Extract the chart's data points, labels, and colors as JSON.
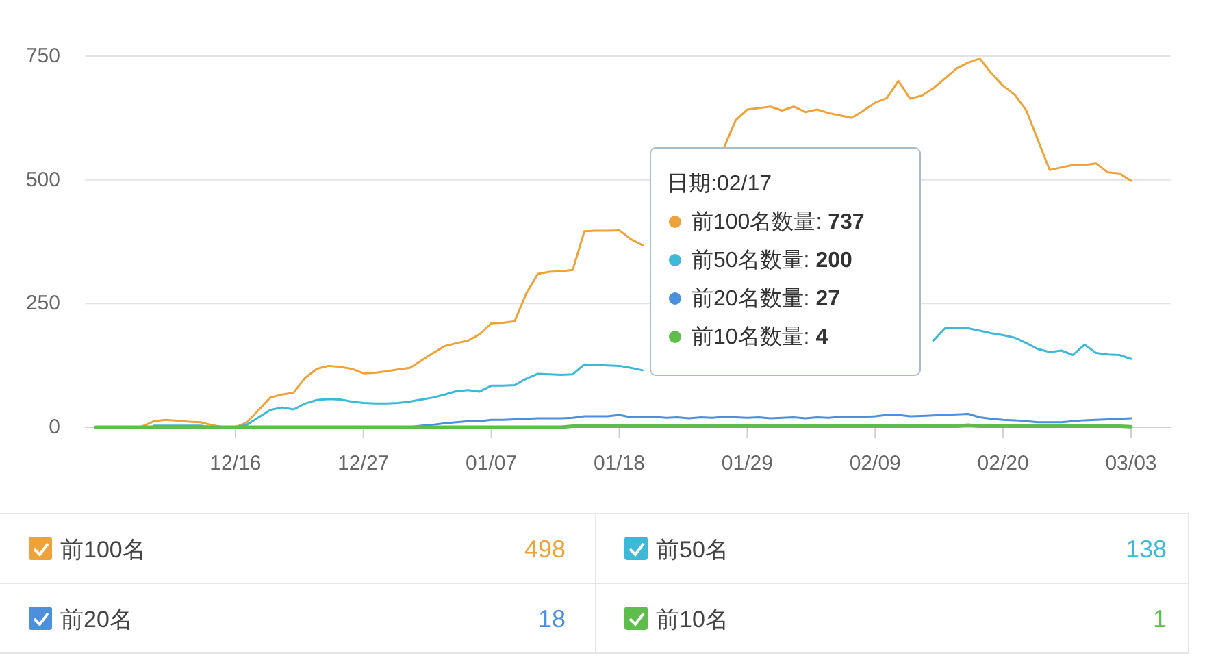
{
  "chart_data": {
    "type": "line",
    "categories": [
      null,
      null,
      null,
      null,
      null,
      null,
      null,
      null,
      null,
      null,
      null,
      null,
      "12/16",
      null,
      null,
      null,
      null,
      null,
      null,
      null,
      null,
      null,
      null,
      "12/27",
      null,
      null,
      null,
      null,
      null,
      null,
      null,
      null,
      null,
      null,
      "01/07",
      null,
      null,
      null,
      null,
      null,
      null,
      null,
      null,
      null,
      null,
      "01/18",
      null,
      null,
      null,
      null,
      null,
      null,
      null,
      null,
      null,
      null,
      "01/29",
      null,
      null,
      null,
      null,
      null,
      null,
      null,
      null,
      null,
      null,
      "02/09",
      null,
      null,
      null,
      null,
      null,
      null,
      null,
      null,
      null,
      null,
      "02/20",
      null,
      null,
      null,
      null,
      null,
      null,
      null,
      null,
      null,
      null,
      "03/03"
    ],
    "series": [
      {
        "name": "前100名",
        "color": "#eda23a",
        "values": [
          null,
          null,
          null,
          null,
          2,
          12,
          15,
          13,
          11,
          10,
          4,
          0,
          0,
          10,
          35,
          60,
          66,
          70,
          100,
          118,
          124,
          122,
          118,
          109,
          110,
          113,
          117,
          120,
          135,
          150,
          164,
          170,
          175,
          188,
          210,
          211,
          214,
          270,
          310,
          314,
          315,
          318,
          396,
          397,
          397,
          398,
          380,
          368,
          null,
          null,
          null,
          null,
          null,
          null,
          565,
          620,
          642,
          645,
          648,
          640,
          648,
          637,
          642,
          635,
          630,
          625,
          640,
          656,
          665,
          700,
          664,
          670,
          685,
          705,
          725,
          737,
          745,
          715,
          690,
          672,
          640,
          580,
          520,
          525,
          530,
          530,
          533,
          515,
          513,
          498
        ]
      },
      {
        "name": "前50名",
        "color": "#3db8d6",
        "values": [
          null,
          null,
          null,
          null,
          null,
          3,
          3,
          3,
          3,
          3,
          0,
          0,
          0,
          5,
          20,
          35,
          40,
          36,
          48,
          55,
          57,
          56,
          52,
          49,
          48,
          48,
          49,
          52,
          56,
          60,
          66,
          73,
          75,
          72,
          84,
          84,
          85,
          98,
          108,
          107,
          106,
          107,
          127,
          126,
          125,
          124,
          120,
          115,
          null,
          null,
          null,
          null,
          null,
          null,
          null,
          null,
          null,
          null,
          null,
          null,
          null,
          null,
          null,
          null,
          null,
          null,
          null,
          null,
          null,
          null,
          null,
          null,
          175,
          200,
          200,
          200,
          195,
          190,
          186,
          181,
          170,
          158,
          152,
          155,
          146,
          167,
          150,
          147,
          146,
          138
        ]
      },
      {
        "name": "前20名",
        "color": "#4c8fdd",
        "values": [
          null,
          null,
          null,
          null,
          0,
          0,
          0,
          0,
          0,
          0,
          0,
          0,
          0,
          0,
          0,
          0,
          0,
          0,
          0,
          0,
          0,
          0,
          0,
          0,
          0,
          0,
          0,
          0,
          3,
          5,
          8,
          10,
          12,
          12,
          15,
          15,
          16,
          17,
          18,
          18,
          18,
          19,
          22,
          22,
          22,
          25,
          20,
          20,
          21,
          19,
          20,
          18,
          20,
          19,
          21,
          20,
          19,
          20,
          18,
          19,
          20,
          18,
          20,
          19,
          21,
          20,
          21,
          22,
          25,
          25,
          22,
          23,
          24,
          25,
          26,
          27,
          20,
          17,
          15,
          14,
          12,
          10,
          10,
          10,
          12,
          14,
          15,
          16,
          17,
          18
        ]
      },
      {
        "name": "前10名",
        "color": "#5ebd4c",
        "values": [
          0,
          0,
          0,
          0,
          0,
          0,
          0,
          0,
          0,
          0,
          0,
          0,
          0,
          0,
          0,
          0,
          0,
          0,
          0,
          0,
          0,
          0,
          0,
          0,
          0,
          0,
          0,
          0,
          0,
          0,
          0,
          0,
          0,
          0,
          0,
          0,
          0,
          0,
          0,
          0,
          0,
          2,
          2,
          2,
          2,
          2,
          2,
          2,
          2,
          2,
          2,
          2,
          2,
          2,
          2,
          2,
          2,
          2,
          2,
          2,
          2,
          2,
          2,
          2,
          2,
          2,
          2,
          2,
          2,
          2,
          2,
          2,
          2,
          2,
          2,
          4,
          2,
          2,
          2,
          2,
          2,
          2,
          2,
          2,
          2,
          2,
          2,
          2,
          2,
          1
        ]
      }
    ],
    "ylim": [
      0,
      750
    ],
    "yticks": [
      0,
      250,
      500,
      750
    ],
    "grid": "y",
    "legend": "bottom",
    "annotations": [
      "日期:02/17",
      "前100名数量: 737",
      "前50名数量: 200",
      "前20名数量: 27",
      "前10名数量: 4",
      "498",
      "138",
      "18",
      "1"
    ]
  }
}
